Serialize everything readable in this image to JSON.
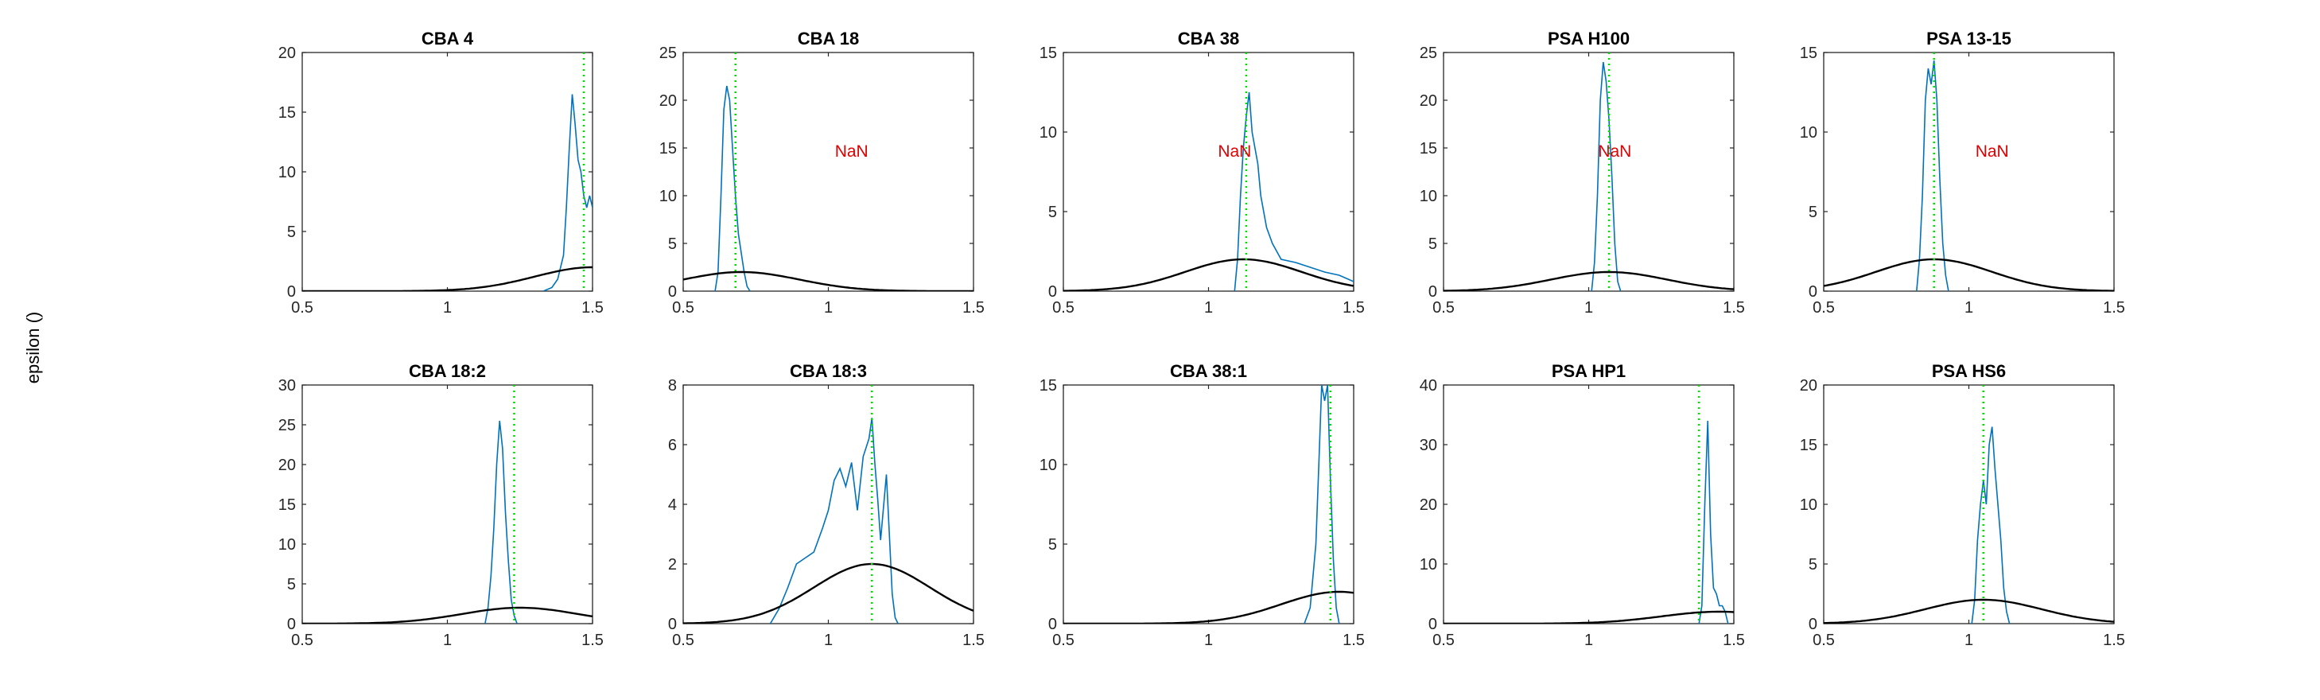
{
  "figure": {
    "ylabel": "epsilon ()",
    "colors": {
      "hist": "#0072BD",
      "prior": "#000000",
      "marker": "#00E000",
      "nan": "#E00000",
      "axis": "#262626"
    }
  },
  "chart_data": [
    {
      "type": "line",
      "title": "CBA 4",
      "xlim": [
        0.5,
        1.5
      ],
      "ylim": [
        0,
        20
      ],
      "xticks": [
        0.5,
        1,
        1.5
      ],
      "yticks": [
        0,
        5,
        10,
        15,
        20
      ],
      "vline": 1.47,
      "prior": {
        "mean": 1.5,
        "sd": 0.2,
        "peak": 2
      },
      "annotation": "",
      "hist": [
        [
          1.33,
          0
        ],
        [
          1.36,
          0.3
        ],
        [
          1.38,
          1
        ],
        [
          1.4,
          3
        ],
        [
          1.41,
          7
        ],
        [
          1.42,
          12
        ],
        [
          1.43,
          16.5
        ],
        [
          1.44,
          14
        ],
        [
          1.45,
          11
        ],
        [
          1.46,
          10
        ],
        [
          1.47,
          8
        ],
        [
          1.48,
          7
        ],
        [
          1.49,
          8
        ],
        [
          1.5,
          7
        ]
      ]
    },
    {
      "type": "line",
      "title": "CBA 18",
      "xlim": [
        0.5,
        1.5
      ],
      "ylim": [
        0,
        25
      ],
      "xticks": [
        0.5,
        1,
        1.5
      ],
      "yticks": [
        0,
        5,
        10,
        15,
        20,
        25
      ],
      "vline": 0.68,
      "prior": {
        "mean": 0.7,
        "sd": 0.2,
        "peak": 2
      },
      "annotation": "NaN",
      "hist": [
        [
          0.61,
          0
        ],
        [
          0.62,
          2
        ],
        [
          0.63,
          10
        ],
        [
          0.64,
          19
        ],
        [
          0.65,
          21.5
        ],
        [
          0.66,
          20
        ],
        [
          0.67,
          15
        ],
        [
          0.68,
          10
        ],
        [
          0.69,
          6
        ],
        [
          0.7,
          4
        ],
        [
          0.71,
          2
        ],
        [
          0.72,
          0.5
        ],
        [
          0.73,
          0
        ]
      ]
    },
    {
      "type": "line",
      "title": "CBA 38",
      "xlim": [
        0.5,
        1.5
      ],
      "ylim": [
        0,
        15
      ],
      "xticks": [
        0.5,
        1,
        1.5
      ],
      "yticks": [
        0,
        5,
        10,
        15
      ],
      "vline": 1.13,
      "prior": {
        "mean": 1.12,
        "sd": 0.2,
        "peak": 2
      },
      "annotation": "NaN",
      "hist": [
        [
          1.09,
          0
        ],
        [
          1.1,
          2
        ],
        [
          1.11,
          6
        ],
        [
          1.12,
          9
        ],
        [
          1.13,
          11
        ],
        [
          1.14,
          12.5
        ],
        [
          1.15,
          10
        ],
        [
          1.16,
          9
        ],
        [
          1.17,
          8
        ],
        [
          1.18,
          6
        ],
        [
          1.2,
          4
        ],
        [
          1.22,
          3
        ],
        [
          1.25,
          2
        ],
        [
          1.3,
          1.8
        ],
        [
          1.35,
          1.5
        ],
        [
          1.4,
          1.2
        ],
        [
          1.45,
          1
        ],
        [
          1.5,
          0.6
        ]
      ]
    },
    {
      "type": "line",
      "title": "PSA H100",
      "xlim": [
        0.5,
        1.5
      ],
      "ylim": [
        0,
        25
      ],
      "xticks": [
        0.5,
        1,
        1.5
      ],
      "yticks": [
        0,
        5,
        10,
        15,
        20,
        25
      ],
      "vline": 1.07,
      "prior": {
        "mean": 1.07,
        "sd": 0.2,
        "peak": 2
      },
      "annotation": "NaN",
      "hist": [
        [
          1.01,
          0
        ],
        [
          1.02,
          3
        ],
        [
          1.03,
          10
        ],
        [
          1.04,
          20
        ],
        [
          1.05,
          24
        ],
        [
          1.06,
          22
        ],
        [
          1.07,
          18
        ],
        [
          1.08,
          12
        ],
        [
          1.09,
          5
        ],
        [
          1.1,
          1
        ],
        [
          1.11,
          0
        ]
      ]
    },
    {
      "type": "line",
      "title": "PSA 13-15",
      "xlim": [
        0.5,
        1.5
      ],
      "ylim": [
        0,
        15
      ],
      "xticks": [
        0.5,
        1,
        1.5
      ],
      "yticks": [
        0,
        5,
        10,
        15
      ],
      "vline": 0.88,
      "prior": {
        "mean": 0.88,
        "sd": 0.2,
        "peak": 2
      },
      "annotation": "NaN",
      "hist": [
        [
          0.82,
          0
        ],
        [
          0.83,
          2
        ],
        [
          0.84,
          6
        ],
        [
          0.85,
          12
        ],
        [
          0.86,
          14
        ],
        [
          0.87,
          13
        ],
        [
          0.88,
          14.5
        ],
        [
          0.89,
          12
        ],
        [
          0.9,
          7
        ],
        [
          0.91,
          3
        ],
        [
          0.92,
          1
        ],
        [
          0.93,
          0
        ]
      ]
    },
    {
      "type": "line",
      "title": "CBA 18:2",
      "xlim": [
        0.5,
        1.5
      ],
      "ylim": [
        0,
        30
      ],
      "xticks": [
        0.5,
        1,
        1.5
      ],
      "yticks": [
        0,
        5,
        10,
        15,
        20,
        25,
        30
      ],
      "vline": 1.23,
      "prior": {
        "mean": 1.25,
        "sd": 0.2,
        "peak": 2
      },
      "annotation": "",
      "hist": [
        [
          1.13,
          0
        ],
        [
          1.14,
          2
        ],
        [
          1.15,
          6
        ],
        [
          1.16,
          12
        ],
        [
          1.17,
          20
        ],
        [
          1.18,
          25.5
        ],
        [
          1.19,
          22
        ],
        [
          1.2,
          14
        ],
        [
          1.21,
          8
        ],
        [
          1.22,
          3
        ],
        [
          1.23,
          1
        ],
        [
          1.24,
          0
        ]
      ]
    },
    {
      "type": "line",
      "title": "CBA 18:3",
      "xlim": [
        0.5,
        1.5
      ],
      "ylim": [
        0,
        8
      ],
      "xticks": [
        0.5,
        1,
        1.5
      ],
      "yticks": [
        0,
        2,
        4,
        6,
        8
      ],
      "vline": 1.15,
      "prior": {
        "mean": 1.15,
        "sd": 0.2,
        "peak": 2
      },
      "annotation": "",
      "hist": [
        [
          0.8,
          0
        ],
        [
          0.83,
          0.5
        ],
        [
          0.86,
          1.2
        ],
        [
          0.89,
          2
        ],
        [
          0.92,
          2.2
        ],
        [
          0.95,
          2.4
        ],
        [
          0.98,
          3.2
        ],
        [
          1.0,
          3.8
        ],
        [
          1.02,
          4.8
        ],
        [
          1.04,
          5.2
        ],
        [
          1.06,
          4.6
        ],
        [
          1.08,
          5.4
        ],
        [
          1.1,
          3.8
        ],
        [
          1.12,
          5.6
        ],
        [
          1.14,
          6.2
        ],
        [
          1.15,
          6.9
        ],
        [
          1.16,
          5.4
        ],
        [
          1.17,
          4.2
        ],
        [
          1.18,
          2.8
        ],
        [
          1.2,
          5
        ],
        [
          1.21,
          3
        ],
        [
          1.22,
          1
        ],
        [
          1.23,
          0.2
        ],
        [
          1.24,
          0
        ]
      ]
    },
    {
      "type": "line",
      "title": "CBA 38:1",
      "xlim": [
        0.5,
        1.5
      ],
      "ylim": [
        0,
        15
      ],
      "xticks": [
        0.5,
        1,
        1.5
      ],
      "yticks": [
        0,
        5,
        10,
        15
      ],
      "vline": 1.42,
      "prior": {
        "mean": 1.45,
        "sd": 0.2,
        "peak": 2
      },
      "annotation": "",
      "hist": [
        [
          1.33,
          0
        ],
        [
          1.35,
          1
        ],
        [
          1.37,
          5
        ],
        [
          1.38,
          10
        ],
        [
          1.39,
          15
        ],
        [
          1.4,
          14
        ],
        [
          1.41,
          15
        ],
        [
          1.42,
          9
        ],
        [
          1.43,
          4
        ],
        [
          1.44,
          1
        ],
        [
          1.45,
          0
        ]
      ]
    },
    {
      "type": "line",
      "title": "PSA HP1",
      "xlim": [
        0.5,
        1.5
      ],
      "ylim": [
        0,
        40
      ],
      "xticks": [
        0.5,
        1,
        1.5
      ],
      "yticks": [
        0,
        10,
        20,
        30,
        40
      ],
      "vline": 1.38,
      "prior": {
        "mean": 1.45,
        "sd": 0.2,
        "peak": 2
      },
      "annotation": "",
      "hist": [
        [
          1.38,
          0
        ],
        [
          1.39,
          3
        ],
        [
          1.4,
          20
        ],
        [
          1.41,
          34
        ],
        [
          1.42,
          15
        ],
        [
          1.43,
          6
        ],
        [
          1.44,
          5
        ],
        [
          1.45,
          3
        ],
        [
          1.46,
          3
        ],
        [
          1.47,
          2
        ],
        [
          1.48,
          0
        ]
      ]
    },
    {
      "type": "line",
      "title": "PSA HS6",
      "xlim": [
        0.5,
        1.5
      ],
      "ylim": [
        0,
        20
      ],
      "xticks": [
        0.5,
        1,
        1.5
      ],
      "yticks": [
        0,
        5,
        10,
        15,
        20
      ],
      "vline": 1.05,
      "prior": {
        "mean": 1.05,
        "sd": 0.2,
        "peak": 2
      },
      "annotation": "",
      "hist": [
        [
          1.01,
          0
        ],
        [
          1.02,
          2
        ],
        [
          1.03,
          7
        ],
        [
          1.04,
          10
        ],
        [
          1.05,
          12
        ],
        [
          1.06,
          10
        ],
        [
          1.07,
          15
        ],
        [
          1.08,
          16.5
        ],
        [
          1.09,
          13
        ],
        [
          1.1,
          10
        ],
        [
          1.11,
          7
        ],
        [
          1.12,
          3
        ],
        [
          1.13,
          1
        ],
        [
          1.14,
          0
        ]
      ]
    }
  ]
}
